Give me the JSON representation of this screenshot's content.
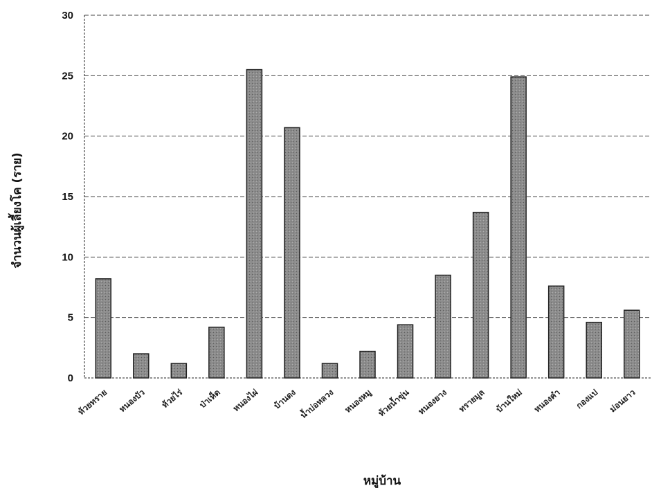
{
  "chart_data": {
    "type": "bar",
    "title": "",
    "xlabel": "หมู่บ้าน",
    "ylabel": "จำนวนผู้เลี้ยงโค (ราย)",
    "ylim": [
      0,
      30
    ],
    "yticks": [
      0,
      5,
      10,
      15,
      20,
      25,
      30
    ],
    "grid": true,
    "legend": "none",
    "bar_color": "#8c8c8c",
    "categories": [
      "ห้วยทราย",
      "หนองบัว",
      "ห้วยไร่",
      "ป่าเห็ด",
      "หนองไผ่",
      "บ้านดง",
      "น้ำบ่อหลวง",
      "หนองหมู",
      "ห้วยน้ำขุ่น",
      "หนองยาง",
      "ทรายมูล",
      "บ้านใหม่",
      "หนองคำ",
      "กองแป",
      "ม่อนยาว"
    ],
    "values": [
      8.2,
      2.0,
      1.2,
      4.2,
      25.5,
      20.7,
      1.2,
      2.2,
      4.4,
      8.5,
      13.7,
      24.9,
      7.6,
      4.6,
      5.6
    ]
  }
}
